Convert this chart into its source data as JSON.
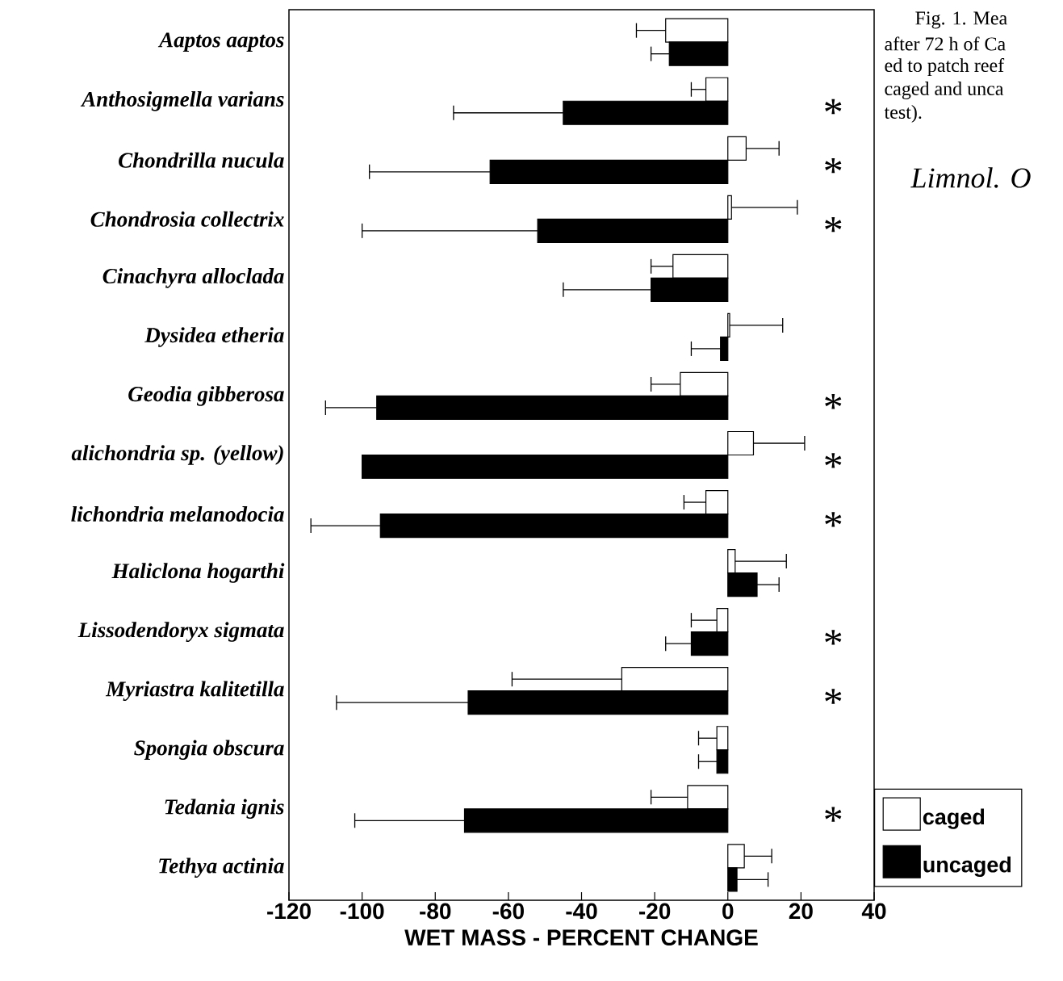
{
  "chart_data": {
    "type": "bar",
    "orientation": "horizontal",
    "categories": [
      "Aaptos aaptos",
      "Anthosigmella varians",
      "Chondrilla nucula",
      "Chondrosia collectrix",
      "Cinachyra alloclada",
      "Dysidea etheria",
      "Geodia gibberosa",
      "alichondria  sp. (yellow)",
      "lichondria melanodocia",
      "Haliclona hogarthi",
      "Lissodendoryx sigmata",
      "Myriastra kalitetilla",
      "Spongia obscura",
      "Tedania ignis",
      "Tethya actinia"
    ],
    "series": [
      {
        "name": "caged",
        "color": "#ffffff",
        "values": [
          -17,
          -6,
          5,
          1,
          -15,
          0.5,
          -13,
          7,
          -6,
          2,
          -3,
          -29,
          -3,
          -11,
          4.5
        ],
        "errors": [
          [
            -25,
            -17
          ],
          [
            -10,
            -6
          ],
          [
            5,
            14
          ],
          [
            1,
            19
          ],
          [
            -21,
            -15
          ],
          [
            0.5,
            15
          ],
          [
            -21,
            -13
          ],
          [
            7,
            21
          ],
          [
            -12,
            -6
          ],
          [
            2,
            16
          ],
          [
            -10,
            -3
          ],
          [
            -59,
            -29
          ],
          [
            -8,
            -3
          ],
          [
            -21,
            -11
          ],
          [
            4.5,
            12
          ]
        ]
      },
      {
        "name": "uncaged",
        "color": "#000000",
        "values": [
          -16,
          -45,
          -65,
          -52,
          -21,
          -2,
          -96,
          -100,
          -95,
          8,
          -10,
          -71,
          -3,
          -72,
          2.5
        ],
        "errors": [
          [
            -21,
            -16
          ],
          [
            -75,
            -45
          ],
          [
            -98,
            -65
          ],
          [
            -100,
            -52
          ],
          [
            -45,
            -21
          ],
          [
            -10,
            -2
          ],
          [
            -110,
            -96
          ],
          null,
          [
            -114,
            -95
          ],
          [
            8,
            14
          ],
          [
            -17,
            -10
          ],
          [
            -107,
            -71
          ],
          [
            -8,
            -3
          ],
          [
            -102,
            -72
          ],
          [
            2.5,
            11
          ]
        ]
      }
    ],
    "xlim": [
      -120,
      40
    ],
    "xticks": [
      -120,
      -100,
      -80,
      -60,
      -40,
      -20,
      0,
      20,
      40
    ],
    "xlabel": "WET MASS - PERCENT CHANGE",
    "legend": "bottom right",
    "annotations": [
      "*",
      "*",
      "*",
      "*",
      "*",
      "*",
      "*",
      "*",
      "*",
      "Fig. 1.  Mea",
      "after 72 h of Ca",
      "ed to patch reef",
      "caged and unca",
      "test).",
      "Limnol. O"
    ]
  }
}
